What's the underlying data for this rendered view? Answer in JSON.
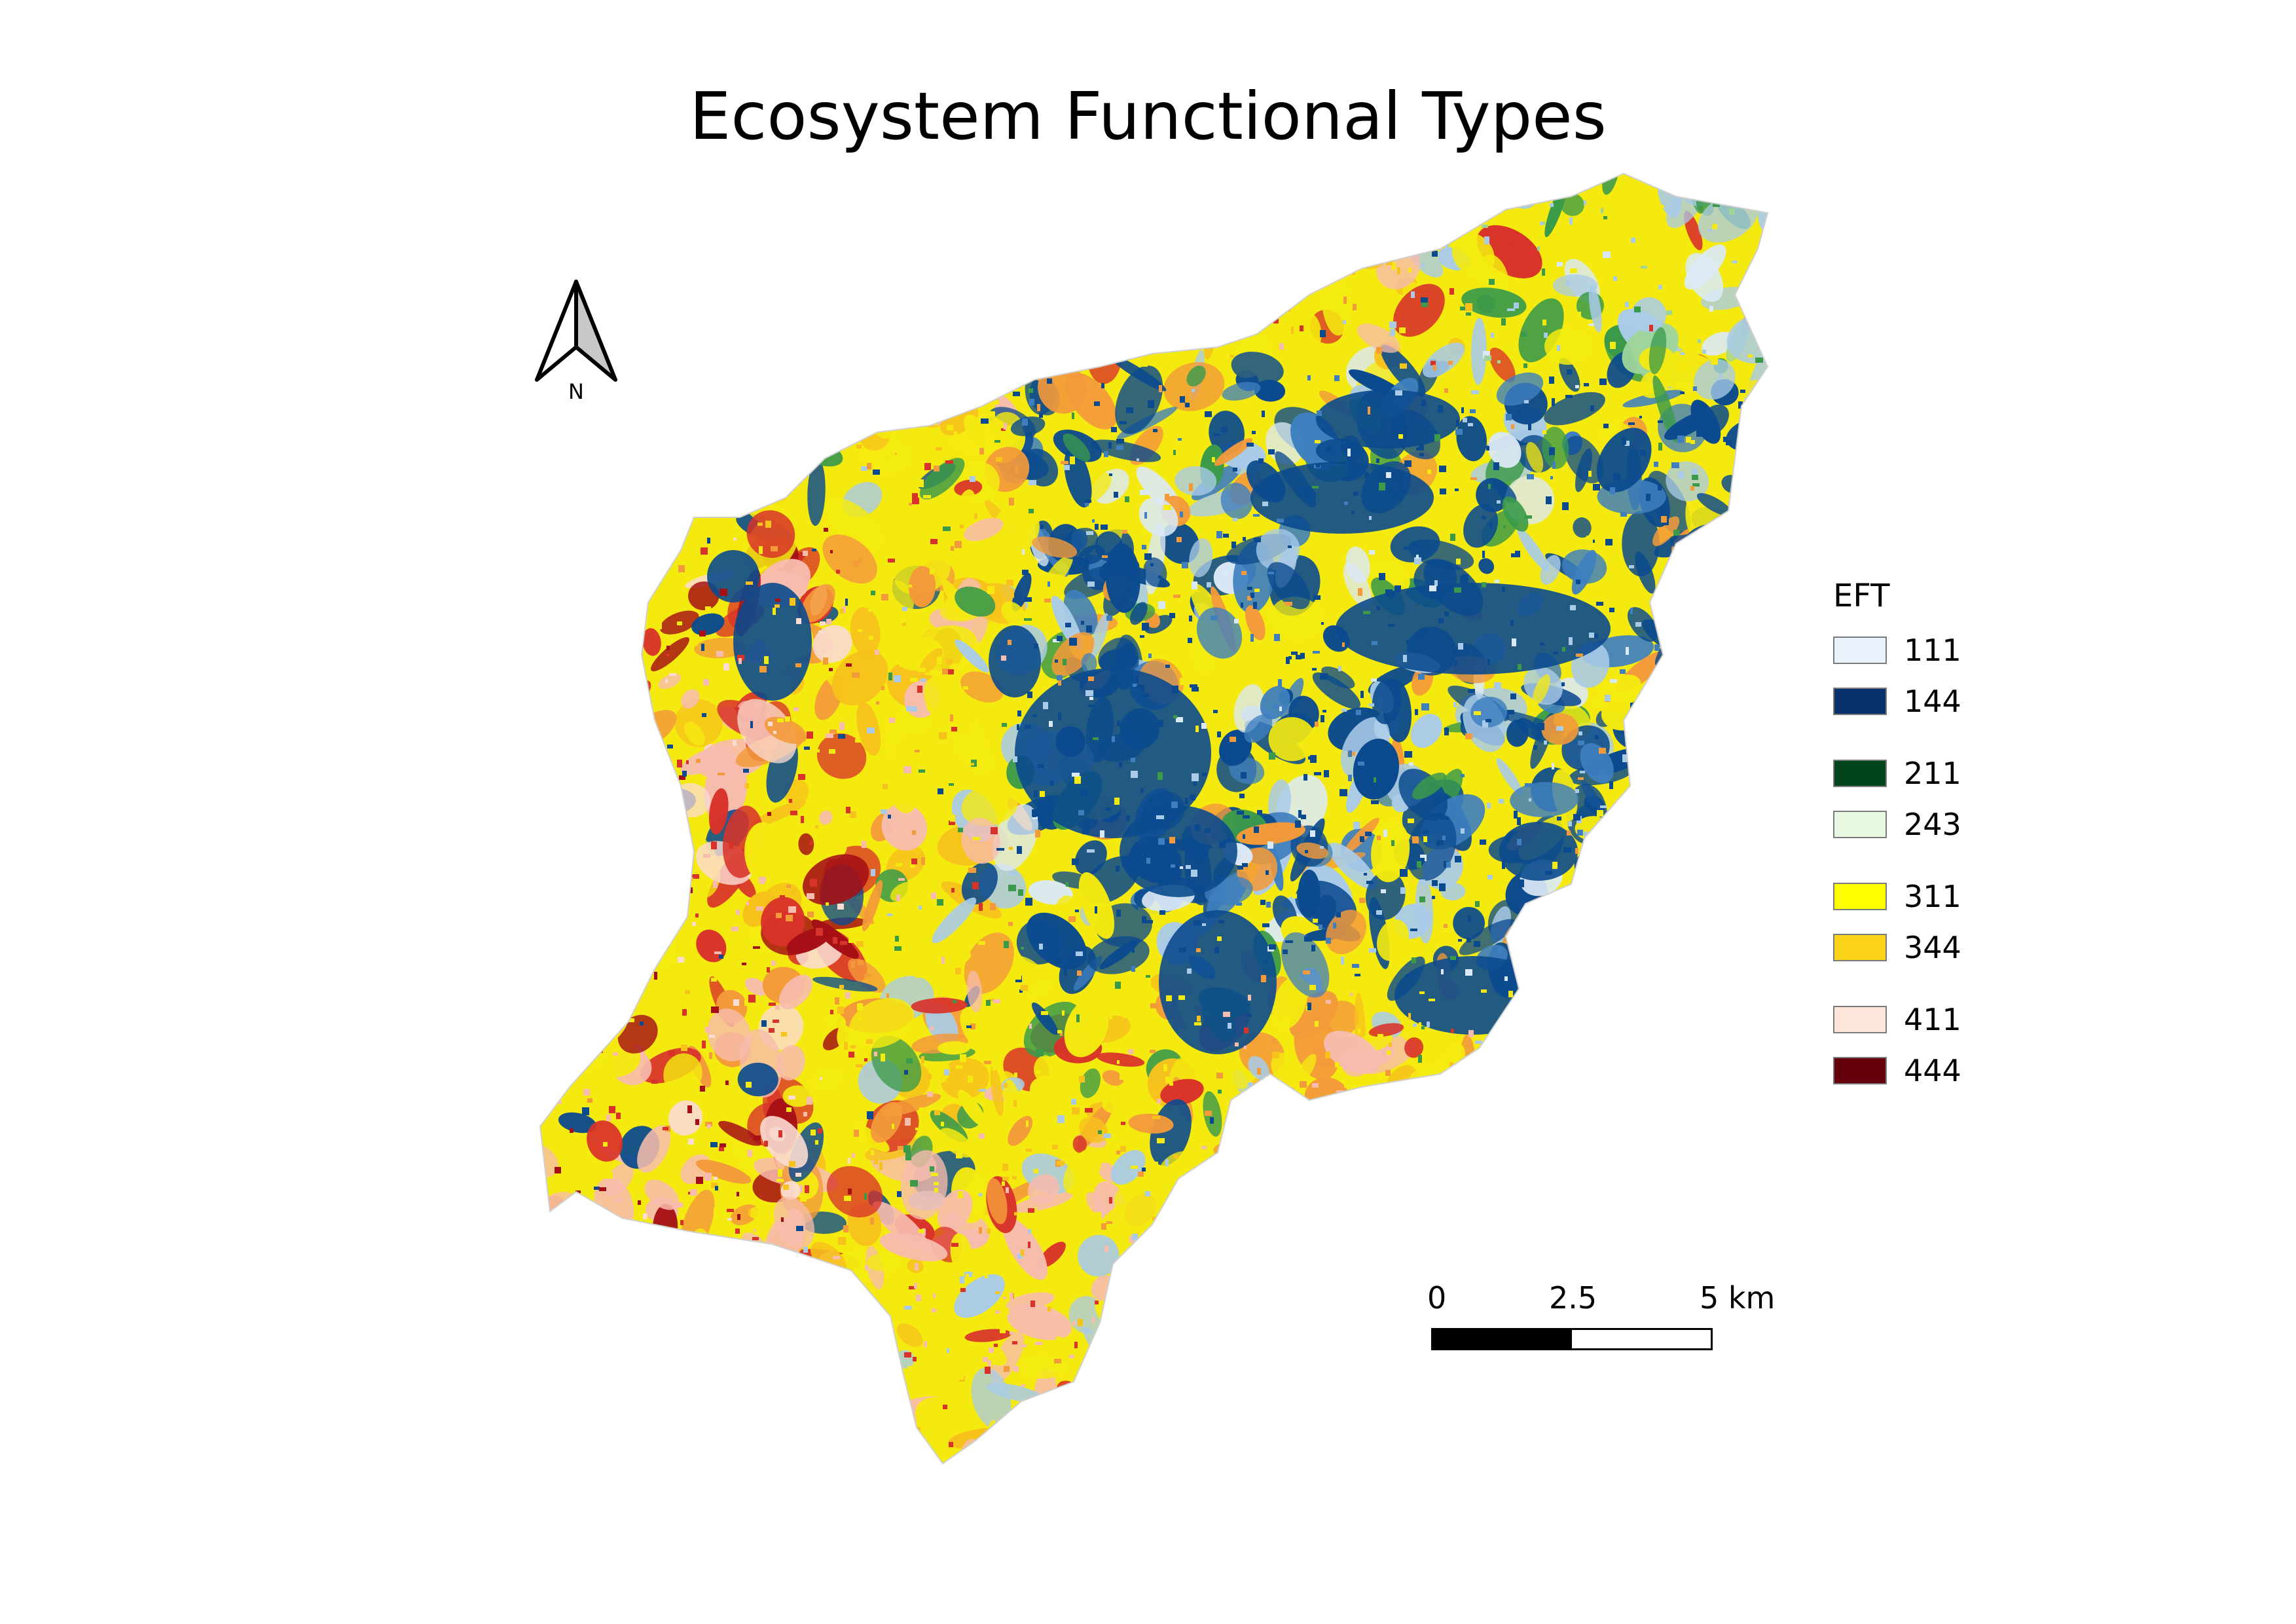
{
  "title": "Ecosystem Functional Types",
  "north_arrow": {
    "label": "N"
  },
  "legend": {
    "title": "EFT",
    "groups": [
      [
        {
          "label": "111",
          "color": "#eaf2fb"
        },
        {
          "label": "144",
          "color": "#08306b"
        }
      ],
      [
        {
          "label": "211",
          "color": "#00441b"
        },
        {
          "label": "243",
          "color": "#e8f8e0"
        }
      ],
      [
        {
          "label": "311",
          "color": "#ffff00"
        },
        {
          "label": "344",
          "color": "#fdd41c"
        }
      ],
      [
        {
          "label": "411",
          "color": "#fee6db"
        },
        {
          "label": "444",
          "color": "#67000d"
        }
      ]
    ]
  },
  "scale_bar": {
    "labels": [
      "0",
      "2.5",
      "5 km"
    ]
  },
  "map_colors": {
    "dark_blue": "#0b4a8e",
    "mid_blue": "#3f7fbf",
    "light_blue": "#a9cbe8",
    "pale_blue": "#dbe9f6",
    "green": "#3a9a4a",
    "light_green": "#9ed49a",
    "yellow": "#f4ea10",
    "gold": "#f7c21c",
    "orange": "#f39a3a",
    "red": "#d8322a",
    "dark_red": "#a50f15",
    "pink": "#f7bcae",
    "pale_pink": "#fbdcd2"
  }
}
